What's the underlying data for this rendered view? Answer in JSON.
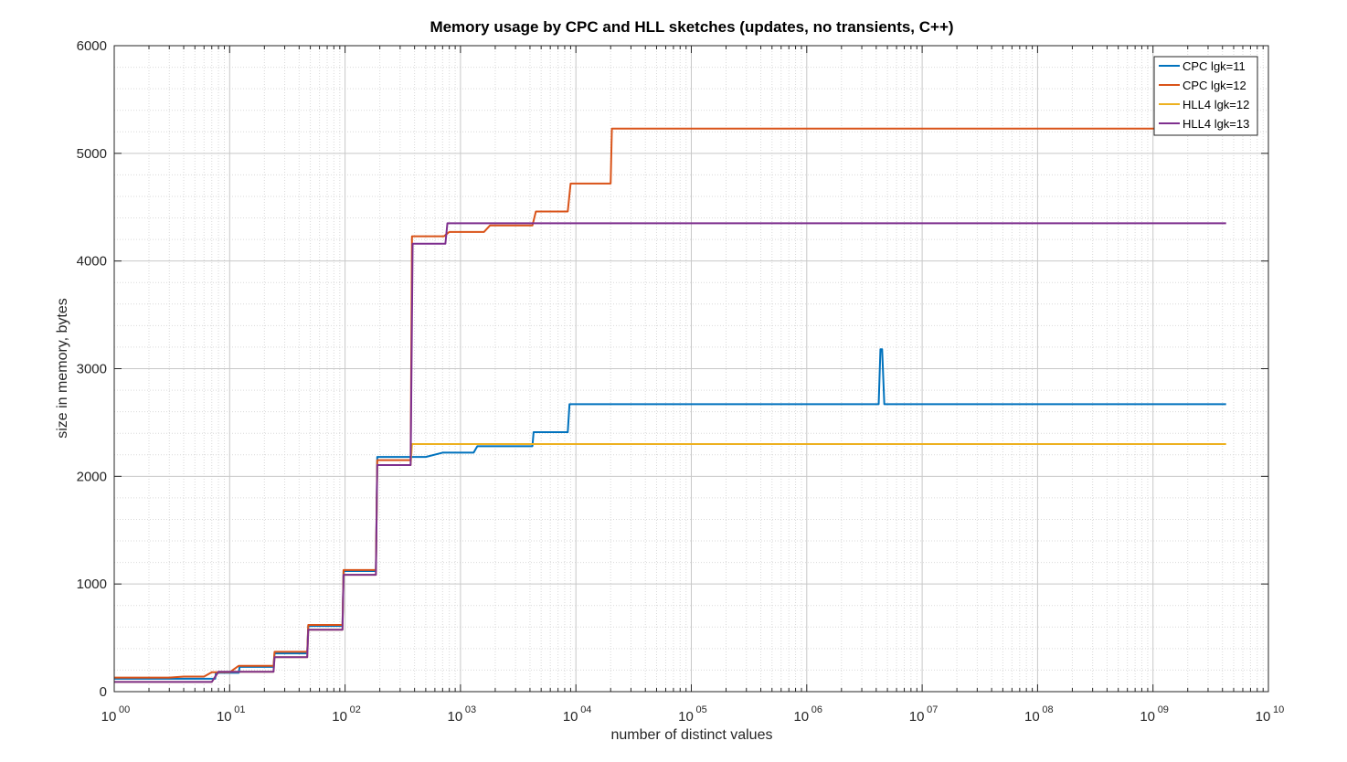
{
  "chart_data": {
    "type": "line",
    "title": "Memory usage by CPC and HLL sketches (updates, no transients, C++)",
    "xlabel": "number of distinct values",
    "ylabel": "size in memory, bytes",
    "xscale": "log",
    "xlim": [
      1,
      10000000000
    ],
    "ylim": [
      0,
      6000
    ],
    "grid": true,
    "minor_grid": true,
    "legend_position": "top-right",
    "x_ticks": [
      {
        "base": "10",
        "exp": "00",
        "value": 1
      },
      {
        "base": "10",
        "exp": "01",
        "value": 10
      },
      {
        "base": "10",
        "exp": "02",
        "value": 100
      },
      {
        "base": "10",
        "exp": "03",
        "value": 1000
      },
      {
        "base": "10",
        "exp": "04",
        "value": 10000
      },
      {
        "base": "10",
        "exp": "05",
        "value": 100000
      },
      {
        "base": "10",
        "exp": "06",
        "value": 1000000
      },
      {
        "base": "10",
        "exp": "07",
        "value": 10000000
      },
      {
        "base": "10",
        "exp": "08",
        "value": 100000000
      },
      {
        "base": "10",
        "exp": "09",
        "value": 1000000000
      },
      {
        "base": "10",
        "exp": "10",
        "value": 10000000000
      }
    ],
    "y_ticks": [
      {
        "label": "0",
        "value": 0
      },
      {
        "label": "1000",
        "value": 1000
      },
      {
        "label": "2000",
        "value": 2000
      },
      {
        "label": "3000",
        "value": 3000
      },
      {
        "label": "4000",
        "value": 4000
      },
      {
        "label": "5000",
        "value": 5000
      },
      {
        "label": "6000",
        "value": 6000
      }
    ],
    "series": [
      {
        "name": "CPC lgk=11",
        "color": "#0072BD",
        "points": [
          [
            1,
            120
          ],
          [
            7.5,
            120
          ],
          [
            7.6,
            175
          ],
          [
            12,
            175
          ],
          [
            12.2,
            230
          ],
          [
            24,
            230
          ],
          [
            24.5,
            355
          ],
          [
            47,
            355
          ],
          [
            48,
            610
          ],
          [
            95,
            610
          ],
          [
            97,
            1120
          ],
          [
            185,
            1120
          ],
          [
            190,
            2180
          ],
          [
            500,
            2180
          ],
          [
            700,
            2220
          ],
          [
            1300,
            2220
          ],
          [
            1400,
            2280
          ],
          [
            4200,
            2280
          ],
          [
            4300,
            2410
          ],
          [
            8500,
            2410
          ],
          [
            8800,
            2670
          ],
          [
            4200000,
            2670
          ],
          [
            4350000,
            3180
          ],
          [
            4500000,
            3180
          ],
          [
            4700000,
            2670
          ],
          [
            4300000000,
            2670
          ]
        ]
      },
      {
        "name": "CPC lgk=12",
        "color": "#D95319",
        "points": [
          [
            1,
            130
          ],
          [
            3,
            130
          ],
          [
            4,
            140
          ],
          [
            6,
            140
          ],
          [
            7,
            180
          ],
          [
            10,
            180
          ],
          [
            12,
            240
          ],
          [
            24,
            240
          ],
          [
            24.5,
            370
          ],
          [
            47,
            370
          ],
          [
            48,
            620
          ],
          [
            95,
            620
          ],
          [
            97,
            1130
          ],
          [
            185,
            1130
          ],
          [
            190,
            2150
          ],
          [
            370,
            2150
          ],
          [
            380,
            4230
          ],
          [
            720,
            4230
          ],
          [
            800,
            4270
          ],
          [
            1600,
            4270
          ],
          [
            1800,
            4330
          ],
          [
            4200,
            4330
          ],
          [
            4500,
            4460
          ],
          [
            8500,
            4460
          ],
          [
            9000,
            4720
          ],
          [
            20000,
            4720
          ],
          [
            20500,
            5230
          ],
          [
            4300000000,
            5230
          ]
        ]
      },
      {
        "name": "HLL4 lgk=12",
        "color": "#EDB120",
        "points": [
          [
            1,
            90
          ],
          [
            7,
            90
          ],
          [
            8,
            185
          ],
          [
            24,
            185
          ],
          [
            24.5,
            320
          ],
          [
            47,
            320
          ],
          [
            48,
            575
          ],
          [
            95,
            575
          ],
          [
            97,
            1085
          ],
          [
            185,
            1085
          ],
          [
            190,
            2105
          ],
          [
            370,
            2105
          ],
          [
            380,
            2300
          ],
          [
            4300000000,
            2300
          ]
        ]
      },
      {
        "name": "HLL4 lgk=13",
        "color": "#7E2F8E",
        "points": [
          [
            1,
            90
          ],
          [
            7,
            90
          ],
          [
            8,
            185
          ],
          [
            24,
            185
          ],
          [
            24.5,
            320
          ],
          [
            47,
            320
          ],
          [
            48,
            575
          ],
          [
            95,
            575
          ],
          [
            97,
            1085
          ],
          [
            185,
            1085
          ],
          [
            190,
            2105
          ],
          [
            370,
            2105
          ],
          [
            385,
            4160
          ],
          [
            740,
            4160
          ],
          [
            770,
            4350
          ],
          [
            4300000000,
            4350
          ]
        ]
      }
    ]
  }
}
